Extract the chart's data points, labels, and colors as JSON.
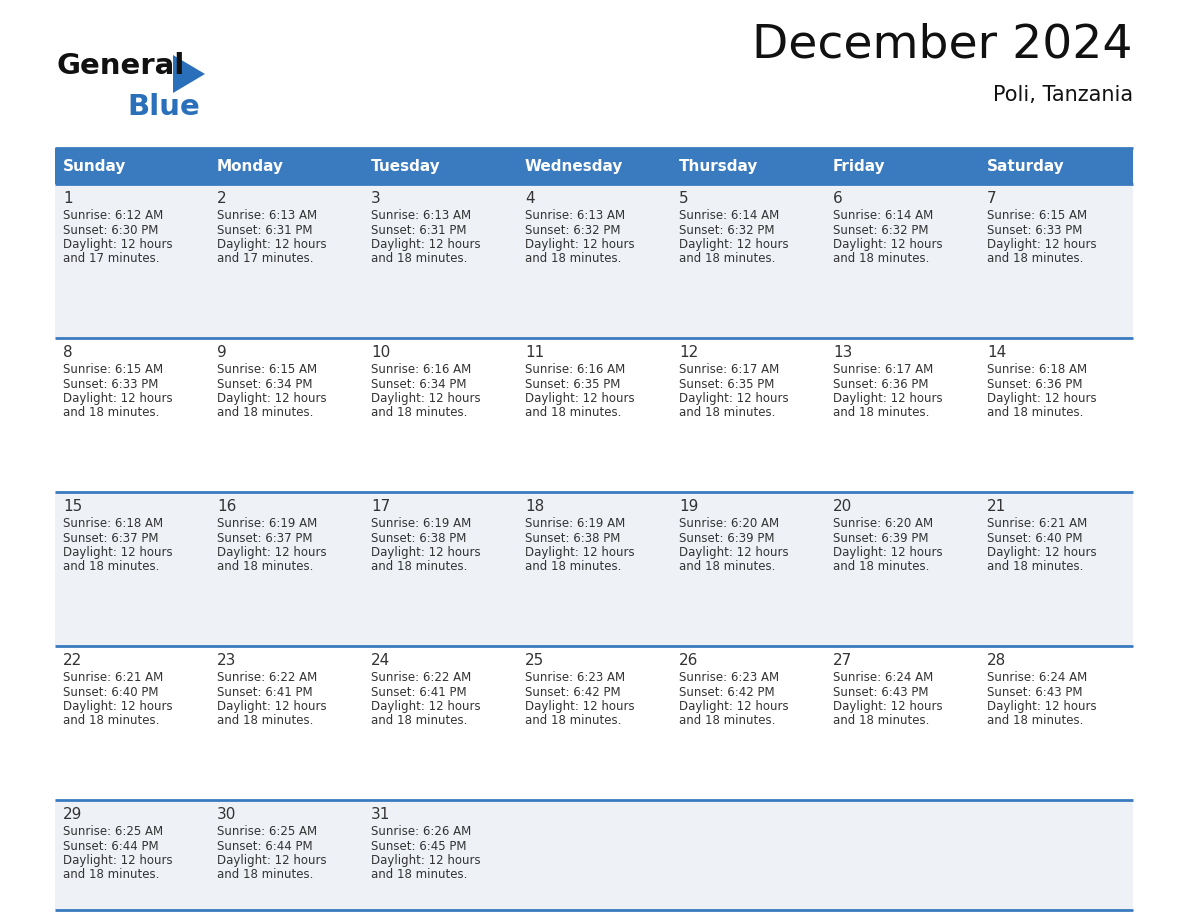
{
  "title": "December 2024",
  "subtitle": "Poli, Tanzania",
  "header_color": "#3a7bbf",
  "header_text_color": "#ffffff",
  "days_of_week": [
    "Sunday",
    "Monday",
    "Tuesday",
    "Wednesday",
    "Thursday",
    "Friday",
    "Saturday"
  ],
  "bg_color_odd": "#eef2f7",
  "bg_color_even": "#ffffff",
  "cell_text_color": "#333333",
  "calendar_data": [
    [
      {
        "day": 1,
        "sunrise": "6:12 AM",
        "sunset": "6:30 PM",
        "daylight_line1": "Daylight: 12 hours",
        "daylight_line2": "and 17 minutes."
      },
      {
        "day": 2,
        "sunrise": "6:13 AM",
        "sunset": "6:31 PM",
        "daylight_line1": "Daylight: 12 hours",
        "daylight_line2": "and 17 minutes."
      },
      {
        "day": 3,
        "sunrise": "6:13 AM",
        "sunset": "6:31 PM",
        "daylight_line1": "Daylight: 12 hours",
        "daylight_line2": "and 18 minutes."
      },
      {
        "day": 4,
        "sunrise": "6:13 AM",
        "sunset": "6:32 PM",
        "daylight_line1": "Daylight: 12 hours",
        "daylight_line2": "and 18 minutes."
      },
      {
        "day": 5,
        "sunrise": "6:14 AM",
        "sunset": "6:32 PM",
        "daylight_line1": "Daylight: 12 hours",
        "daylight_line2": "and 18 minutes."
      },
      {
        "day": 6,
        "sunrise": "6:14 AM",
        "sunset": "6:32 PM",
        "daylight_line1": "Daylight: 12 hours",
        "daylight_line2": "and 18 minutes."
      },
      {
        "day": 7,
        "sunrise": "6:15 AM",
        "sunset": "6:33 PM",
        "daylight_line1": "Daylight: 12 hours",
        "daylight_line2": "and 18 minutes."
      }
    ],
    [
      {
        "day": 8,
        "sunrise": "6:15 AM",
        "sunset": "6:33 PM",
        "daylight_line1": "Daylight: 12 hours",
        "daylight_line2": "and 18 minutes."
      },
      {
        "day": 9,
        "sunrise": "6:15 AM",
        "sunset": "6:34 PM",
        "daylight_line1": "Daylight: 12 hours",
        "daylight_line2": "and 18 minutes."
      },
      {
        "day": 10,
        "sunrise": "6:16 AM",
        "sunset": "6:34 PM",
        "daylight_line1": "Daylight: 12 hours",
        "daylight_line2": "and 18 minutes."
      },
      {
        "day": 11,
        "sunrise": "6:16 AM",
        "sunset": "6:35 PM",
        "daylight_line1": "Daylight: 12 hours",
        "daylight_line2": "and 18 minutes."
      },
      {
        "day": 12,
        "sunrise": "6:17 AM",
        "sunset": "6:35 PM",
        "daylight_line1": "Daylight: 12 hours",
        "daylight_line2": "and 18 minutes."
      },
      {
        "day": 13,
        "sunrise": "6:17 AM",
        "sunset": "6:36 PM",
        "daylight_line1": "Daylight: 12 hours",
        "daylight_line2": "and 18 minutes."
      },
      {
        "day": 14,
        "sunrise": "6:18 AM",
        "sunset": "6:36 PM",
        "daylight_line1": "Daylight: 12 hours",
        "daylight_line2": "and 18 minutes."
      }
    ],
    [
      {
        "day": 15,
        "sunrise": "6:18 AM",
        "sunset": "6:37 PM",
        "daylight_line1": "Daylight: 12 hours",
        "daylight_line2": "and 18 minutes."
      },
      {
        "day": 16,
        "sunrise": "6:19 AM",
        "sunset": "6:37 PM",
        "daylight_line1": "Daylight: 12 hours",
        "daylight_line2": "and 18 minutes."
      },
      {
        "day": 17,
        "sunrise": "6:19 AM",
        "sunset": "6:38 PM",
        "daylight_line1": "Daylight: 12 hours",
        "daylight_line2": "and 18 minutes."
      },
      {
        "day": 18,
        "sunrise": "6:19 AM",
        "sunset": "6:38 PM",
        "daylight_line1": "Daylight: 12 hours",
        "daylight_line2": "and 18 minutes."
      },
      {
        "day": 19,
        "sunrise": "6:20 AM",
        "sunset": "6:39 PM",
        "daylight_line1": "Daylight: 12 hours",
        "daylight_line2": "and 18 minutes."
      },
      {
        "day": 20,
        "sunrise": "6:20 AM",
        "sunset": "6:39 PM",
        "daylight_line1": "Daylight: 12 hours",
        "daylight_line2": "and 18 minutes."
      },
      {
        "day": 21,
        "sunrise": "6:21 AM",
        "sunset": "6:40 PM",
        "daylight_line1": "Daylight: 12 hours",
        "daylight_line2": "and 18 minutes."
      }
    ],
    [
      {
        "day": 22,
        "sunrise": "6:21 AM",
        "sunset": "6:40 PM",
        "daylight_line1": "Daylight: 12 hours",
        "daylight_line2": "and 18 minutes."
      },
      {
        "day": 23,
        "sunrise": "6:22 AM",
        "sunset": "6:41 PM",
        "daylight_line1": "Daylight: 12 hours",
        "daylight_line2": "and 18 minutes."
      },
      {
        "day": 24,
        "sunrise": "6:22 AM",
        "sunset": "6:41 PM",
        "daylight_line1": "Daylight: 12 hours",
        "daylight_line2": "and 18 minutes."
      },
      {
        "day": 25,
        "sunrise": "6:23 AM",
        "sunset": "6:42 PM",
        "daylight_line1": "Daylight: 12 hours",
        "daylight_line2": "and 18 minutes."
      },
      {
        "day": 26,
        "sunrise": "6:23 AM",
        "sunset": "6:42 PM",
        "daylight_line1": "Daylight: 12 hours",
        "daylight_line2": "and 18 minutes."
      },
      {
        "day": 27,
        "sunrise": "6:24 AM",
        "sunset": "6:43 PM",
        "daylight_line1": "Daylight: 12 hours",
        "daylight_line2": "and 18 minutes."
      },
      {
        "day": 28,
        "sunrise": "6:24 AM",
        "sunset": "6:43 PM",
        "daylight_line1": "Daylight: 12 hours",
        "daylight_line2": "and 18 minutes."
      }
    ],
    [
      {
        "day": 29,
        "sunrise": "6:25 AM",
        "sunset": "6:44 PM",
        "daylight_line1": "Daylight: 12 hours",
        "daylight_line2": "and 18 minutes."
      },
      {
        "day": 30,
        "sunrise": "6:25 AM",
        "sunset": "6:44 PM",
        "daylight_line1": "Daylight: 12 hours",
        "daylight_line2": "and 18 minutes."
      },
      {
        "day": 31,
        "sunrise": "6:26 AM",
        "sunset": "6:45 PM",
        "daylight_line1": "Daylight: 12 hours",
        "daylight_line2": "and 18 minutes."
      },
      null,
      null,
      null,
      null
    ]
  ],
  "logo_black_color": "#111111",
  "logo_blue_color": "#2a6fba",
  "logo_triangle_color": "#2a6fba",
  "title_fontsize": 34,
  "subtitle_fontsize": 15,
  "header_fontsize": 11,
  "day_number_fontsize": 11,
  "cell_text_fontsize": 8.5
}
